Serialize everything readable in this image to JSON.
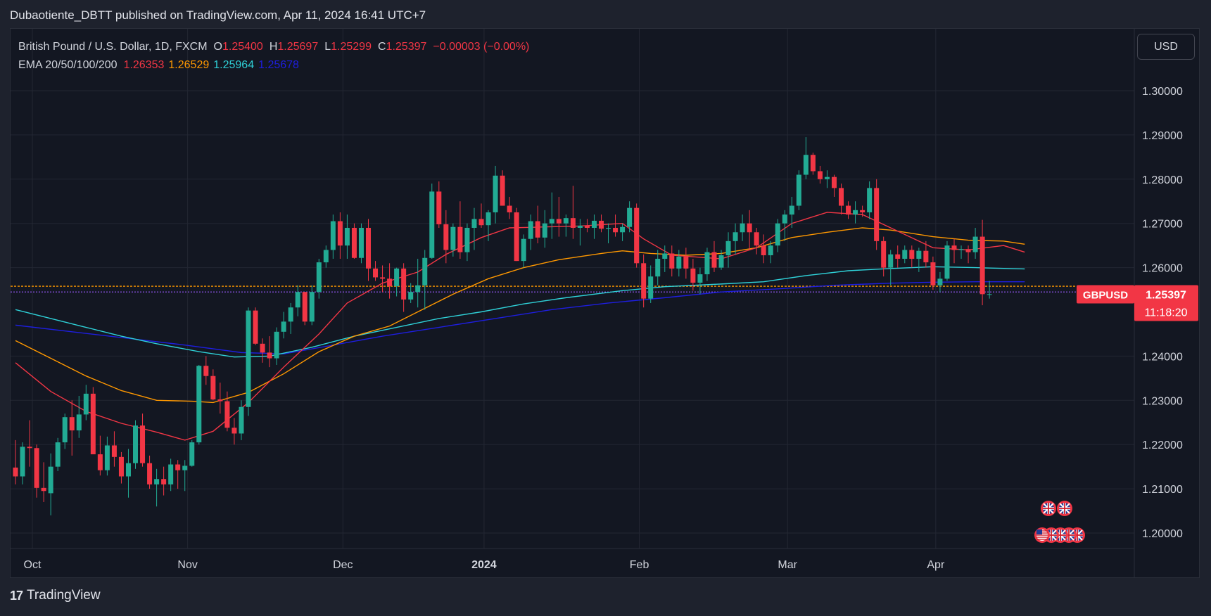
{
  "header": {
    "publish_line": "Dubaotiente_DBTT published on TradingView.com, Apr 11, 2024 16:41 UTC+7"
  },
  "legend": {
    "symbol_desc": "British Pound / U.S. Dollar, 1D, FXCM",
    "o_label": "O",
    "o_value": "1.25400",
    "h_label": "H",
    "h_value": "1.25697",
    "l_label": "L",
    "l_value": "1.25299",
    "c_label": "C",
    "c_value": "1.25397",
    "change": "−0.00003 (−0.00%)",
    "ema_label": "EMA 20/50/100/200",
    "ema20": "1.26353",
    "ema50": "1.26529",
    "ema100": "1.25964",
    "ema200": "1.25678"
  },
  "currency_button": "USD",
  "price_tag": {
    "symbol": "GBPUSD",
    "price": "1.25397",
    "countdown": "11:18:20"
  },
  "brand": {
    "name": "TradingView",
    "logo": "17"
  },
  "colors": {
    "up": "#22ab94",
    "down": "#f23645",
    "ema20": "#f23645",
    "ema50": "#ff9800",
    "ema100": "#2fd1d8",
    "ema200": "#1e1ee0",
    "background": "#131722",
    "hline_orange": "#ff9800",
    "hline_purple": "#9b59ff"
  },
  "chart_data": {
    "type": "candlestick",
    "yticks": [
      "1.30000",
      "1.29000",
      "1.28000",
      "1.27000",
      "1.26000",
      "1.24000",
      "1.23000",
      "1.22000",
      "1.21000",
      "1.20000"
    ],
    "ylim": [
      1.2,
      1.3
    ],
    "xticks": [
      "Oct",
      "Nov",
      "Dec",
      "2024",
      "Feb",
      "Mar",
      "Apr"
    ],
    "xtick_positions": [
      0,
      22,
      44,
      64,
      86,
      107,
      128
    ],
    "horizontal_lines": [
      1.2558,
      1.2545
    ],
    "candles": [
      [
        1.2148,
        1.221,
        1.211,
        1.2128
      ],
      [
        1.2128,
        1.2205,
        1.211,
        1.2195
      ],
      [
        1.2195,
        1.2255,
        1.215,
        1.2192
      ],
      [
        1.2192,
        1.22,
        1.208,
        1.2102
      ],
      [
        1.2102,
        1.216,
        1.207,
        1.2095
      ],
      [
        1.209,
        1.218,
        1.204,
        1.215
      ],
      [
        1.215,
        1.2215,
        1.214,
        1.2205
      ],
      [
        1.2205,
        1.227,
        1.219,
        1.2262
      ],
      [
        1.2262,
        1.23,
        1.2175,
        1.2232
      ],
      [
        1.2232,
        1.231,
        1.2215,
        1.2268
      ],
      [
        1.2268,
        1.2335,
        1.2255,
        1.2315
      ],
      [
        1.2315,
        1.233,
        1.218,
        1.2178
      ],
      [
        1.2178,
        1.222,
        1.213,
        1.2142
      ],
      [
        1.2142,
        1.2218,
        1.213,
        1.2198
      ],
      [
        1.2198,
        1.223,
        1.215,
        1.2172
      ],
      [
        1.2172,
        1.2183,
        1.2112,
        1.2128
      ],
      [
        1.2128,
        1.219,
        1.208,
        1.2158
      ],
      [
        1.2158,
        1.2255,
        1.2145,
        1.2243
      ],
      [
        1.2243,
        1.227,
        1.215,
        1.2158
      ],
      [
        1.2158,
        1.2175,
        1.21,
        1.211
      ],
      [
        1.211,
        1.2145,
        1.206,
        1.2122
      ],
      [
        1.2122,
        1.215,
        1.2085,
        1.211
      ],
      [
        1.211,
        1.2168,
        1.2095,
        1.2155
      ],
      [
        1.2155,
        1.2165,
        1.21,
        1.2142
      ],
      [
        1.2142,
        1.2165,
        1.2095,
        1.2152
      ],
      [
        1.2152,
        1.221,
        1.215,
        1.2205
      ],
      [
        1.2205,
        1.238,
        1.22,
        1.2378
      ],
      [
        1.2378,
        1.24,
        1.2335,
        1.2355
      ],
      [
        1.2355,
        1.237,
        1.23,
        1.2302
      ],
      [
        1.2302,
        1.234,
        1.227,
        1.2298
      ],
      [
        1.2298,
        1.232,
        1.223,
        1.2238
      ],
      [
        1.2238,
        1.226,
        1.22,
        1.2225
      ],
      [
        1.2225,
        1.23,
        1.221,
        1.2285
      ],
      [
        1.2285,
        1.251,
        1.2265,
        1.2503
      ],
      [
        1.2503,
        1.251,
        1.2425,
        1.2428
      ],
      [
        1.2428,
        1.244,
        1.2385,
        1.2408
      ],
      [
        1.2408,
        1.2445,
        1.2375,
        1.2395
      ],
      [
        1.2395,
        1.2465,
        1.238,
        1.2455
      ],
      [
        1.2455,
        1.25,
        1.244,
        1.2478
      ],
      [
        1.2478,
        1.252,
        1.245,
        1.251
      ],
      [
        1.251,
        1.256,
        1.249,
        1.2545
      ],
      [
        1.2545,
        1.2545,
        1.247,
        1.2478
      ],
      [
        1.2478,
        1.256,
        1.247,
        1.2545
      ],
      [
        1.2545,
        1.262,
        1.253,
        1.2612
      ],
      [
        1.2612,
        1.265,
        1.26,
        1.264
      ],
      [
        1.264,
        1.272,
        1.262,
        1.2705
      ],
      [
        1.2705,
        1.2725,
        1.262,
        1.265
      ],
      [
        1.265,
        1.272,
        1.262,
        1.269
      ],
      [
        1.269,
        1.27,
        1.262,
        1.2622
      ],
      [
        1.2622,
        1.27,
        1.261,
        1.269
      ],
      [
        1.269,
        1.271,
        1.257,
        1.2598
      ],
      [
        1.2598,
        1.2615,
        1.257,
        1.2578
      ],
      [
        1.2578,
        1.2605,
        1.2545,
        1.2575
      ],
      [
        1.2575,
        1.261,
        1.253,
        1.2558
      ],
      [
        1.2558,
        1.26,
        1.2535,
        1.2598
      ],
      [
        1.2598,
        1.261,
        1.25,
        1.2528
      ],
      [
        1.2528,
        1.2565,
        1.252,
        1.2545
      ],
      [
        1.2545,
        1.262,
        1.251,
        1.256
      ],
      [
        1.256,
        1.264,
        1.2505,
        1.2622
      ],
      [
        1.2622,
        1.279,
        1.262,
        1.2772
      ],
      [
        1.2772,
        1.2795,
        1.269,
        1.2698
      ],
      [
        1.2698,
        1.273,
        1.261,
        1.264
      ],
      [
        1.264,
        1.27,
        1.2625,
        1.2692
      ],
      [
        1.2692,
        1.275,
        1.262,
        1.2635
      ],
      [
        1.2635,
        1.27,
        1.2615,
        1.269
      ],
      [
        1.269,
        1.2735,
        1.264,
        1.271
      ],
      [
        1.271,
        1.2745,
        1.269,
        1.2696
      ],
      [
        1.2696,
        1.273,
        1.266,
        1.2725
      ],
      [
        1.2725,
        1.283,
        1.27,
        1.2808
      ],
      [
        1.2808,
        1.282,
        1.274,
        1.274
      ],
      [
        1.274,
        1.276,
        1.271,
        1.2725
      ],
      [
        1.2725,
        1.2735,
        1.2615,
        1.2615
      ],
      [
        1.2615,
        1.2675,
        1.26,
        1.2665
      ],
      [
        1.2665,
        1.272,
        1.264,
        1.2705
      ],
      [
        1.2705,
        1.274,
        1.2655,
        1.2668
      ],
      [
        1.2668,
        1.273,
        1.2645,
        1.27
      ],
      [
        1.27,
        1.277,
        1.2665,
        1.271
      ],
      [
        1.271,
        1.276,
        1.267,
        1.27
      ],
      [
        1.27,
        1.272,
        1.267,
        1.2712
      ],
      [
        1.2712,
        1.2785,
        1.2665,
        1.269
      ],
      [
        1.269,
        1.271,
        1.265,
        1.2695
      ],
      [
        1.2695,
        1.271,
        1.268,
        1.269
      ],
      [
        1.269,
        1.272,
        1.2665,
        1.2706
      ],
      [
        1.2706,
        1.272,
        1.268,
        1.2688
      ],
      [
        1.2688,
        1.27,
        1.2655,
        1.269
      ],
      [
        1.269,
        1.272,
        1.267,
        1.268
      ],
      [
        1.268,
        1.27,
        1.266,
        1.2692
      ],
      [
        1.2692,
        1.275,
        1.268,
        1.2735
      ],
      [
        1.2735,
        1.2745,
        1.26,
        1.261
      ],
      [
        1.261,
        1.263,
        1.251,
        1.253
      ],
      [
        1.253,
        1.2605,
        1.252,
        1.258
      ],
      [
        1.258,
        1.264,
        1.256,
        1.262
      ],
      [
        1.262,
        1.265,
        1.259,
        1.2632
      ],
      [
        1.2632,
        1.265,
        1.258,
        1.2598
      ],
      [
        1.2598,
        1.264,
        1.258,
        1.2625
      ],
      [
        1.2625,
        1.2645,
        1.2575,
        1.2598
      ],
      [
        1.2598,
        1.262,
        1.2548,
        1.2566
      ],
      [
        1.2566,
        1.26,
        1.254,
        1.2585
      ],
      [
        1.2585,
        1.2645,
        1.257,
        1.2635
      ],
      [
        1.2635,
        1.266,
        1.259,
        1.26
      ],
      [
        1.26,
        1.264,
        1.2595,
        1.2628
      ],
      [
        1.2628,
        1.268,
        1.26,
        1.266
      ],
      [
        1.266,
        1.27,
        1.263,
        1.268
      ],
      [
        1.268,
        1.272,
        1.266,
        1.27
      ],
      [
        1.27,
        1.273,
        1.264,
        1.268
      ],
      [
        1.268,
        1.269,
        1.263,
        1.265
      ],
      [
        1.265,
        1.2675,
        1.261,
        1.2628
      ],
      [
        1.2628,
        1.266,
        1.261,
        1.265
      ],
      [
        1.265,
        1.271,
        1.2635,
        1.27
      ],
      [
        1.27,
        1.273,
        1.266,
        1.272
      ],
      [
        1.272,
        1.276,
        1.269,
        1.274
      ],
      [
        1.274,
        1.282,
        1.273,
        1.281
      ],
      [
        1.281,
        1.2895,
        1.28,
        1.2855
      ],
      [
        1.2855,
        1.286,
        1.281,
        1.2818
      ],
      [
        1.2818,
        1.283,
        1.279,
        1.28
      ],
      [
        1.28,
        1.282,
        1.278,
        1.2805
      ],
      [
        1.2805,
        1.281,
        1.276,
        1.278
      ],
      [
        1.278,
        1.279,
        1.272,
        1.274
      ],
      [
        1.274,
        1.275,
        1.271,
        1.272
      ],
      [
        1.272,
        1.275,
        1.27,
        1.273
      ],
      [
        1.273,
        1.274,
        1.2715,
        1.2725
      ],
      [
        1.2725,
        1.2795,
        1.271,
        1.278
      ],
      [
        1.278,
        1.28,
        1.264,
        1.266
      ],
      [
        1.266,
        1.267,
        1.258,
        1.26
      ],
      [
        1.26,
        1.264,
        1.256,
        1.263
      ],
      [
        1.263,
        1.265,
        1.26,
        1.262
      ],
      [
        1.262,
        1.265,
        1.261,
        1.264
      ],
      [
        1.264,
        1.265,
        1.26,
        1.262
      ],
      [
        1.262,
        1.2645,
        1.259,
        1.2638
      ],
      [
        1.2638,
        1.266,
        1.26,
        1.2612
      ],
      [
        1.2612,
        1.2625,
        1.255,
        1.256
      ],
      [
        1.256,
        1.259,
        1.2545,
        1.2575
      ],
      [
        1.2575,
        1.266,
        1.257,
        1.265
      ],
      [
        1.265,
        1.2665,
        1.261,
        1.264
      ],
      [
        1.264,
        1.265,
        1.262,
        1.2642
      ],
      [
        1.2642,
        1.265,
        1.261,
        1.2635
      ],
      [
        1.2635,
        1.269,
        1.262,
        1.267
      ],
      [
        1.267,
        1.2708,
        1.2515,
        1.254
      ],
      [
        1.254,
        1.257,
        1.253,
        1.254
      ]
    ],
    "ema": {
      "ema20": [
        [
          0,
          1.2385
        ],
        [
          5,
          1.232
        ],
        [
          10,
          1.2275
        ],
        [
          15,
          1.2248
        ],
        [
          20,
          1.2228
        ],
        [
          24,
          1.221
        ],
        [
          28,
          1.223
        ],
        [
          33,
          1.2295
        ],
        [
          38,
          1.2375
        ],
        [
          43,
          1.245
        ],
        [
          47,
          1.252
        ],
        [
          52,
          1.2565
        ],
        [
          57,
          1.259
        ],
        [
          61,
          1.263
        ],
        [
          66,
          1.2668
        ],
        [
          70,
          1.269
        ],
        [
          75,
          1.2692
        ],
        [
          80,
          1.2694
        ],
        [
          86,
          1.27
        ],
        [
          89,
          1.2665
        ],
        [
          93,
          1.2628
        ],
        [
          100,
          1.262
        ],
        [
          105,
          1.2645
        ],
        [
          110,
          1.27
        ],
        [
          115,
          1.2725
        ],
        [
          120,
          1.272
        ],
        [
          124,
          1.269
        ],
        [
          130,
          1.2645
        ],
        [
          135,
          1.264
        ],
        [
          140,
          1.265
        ],
        [
          143,
          1.2635
        ]
      ],
      "ema50": [
        [
          0,
          1.2435
        ],
        [
          5,
          1.2395
        ],
        [
          10,
          1.2355
        ],
        [
          15,
          1.2322
        ],
        [
          20,
          1.23
        ],
        [
          25,
          1.2298
        ],
        [
          28,
          1.2295
        ],
        [
          33,
          1.2318
        ],
        [
          38,
          1.236
        ],
        [
          43,
          1.241
        ],
        [
          48,
          1.2445
        ],
        [
          53,
          1.2468
        ],
        [
          57,
          1.25
        ],
        [
          62,
          1.254
        ],
        [
          67,
          1.2575
        ],
        [
          72,
          1.26
        ],
        [
          77,
          1.2618
        ],
        [
          83,
          1.2632
        ],
        [
          86,
          1.2638
        ],
        [
          90,
          1.2632
        ],
        [
          95,
          1.2628
        ],
        [
          100,
          1.2632
        ],
        [
          105,
          1.2645
        ],
        [
          110,
          1.2668
        ],
        [
          115,
          1.268
        ],
        [
          120,
          1.269
        ],
        [
          124,
          1.2685
        ],
        [
          130,
          1.267
        ],
        [
          135,
          1.2662
        ],
        [
          140,
          1.266
        ],
        [
          143,
          1.2653
        ]
      ],
      "ema100": [
        [
          0,
          1.2505
        ],
        [
          5,
          1.2485
        ],
        [
          10,
          1.2465
        ],
        [
          15,
          1.2445
        ],
        [
          20,
          1.2428
        ],
        [
          26,
          1.241
        ],
        [
          31,
          1.2398
        ],
        [
          36,
          1.24
        ],
        [
          42,
          1.242
        ],
        [
          48,
          1.2445
        ],
        [
          54,
          1.2465
        ],
        [
          60,
          1.2485
        ],
        [
          66,
          1.25
        ],
        [
          72,
          1.2518
        ],
        [
          78,
          1.2532
        ],
        [
          86,
          1.2548
        ],
        [
          92,
          1.2557
        ],
        [
          100,
          1.2563
        ],
        [
          106,
          1.2568
        ],
        [
          112,
          1.2582
        ],
        [
          118,
          1.2593
        ],
        [
          124,
          1.2598
        ],
        [
          130,
          1.2602
        ],
        [
          136,
          1.26
        ],
        [
          143,
          1.2597
        ]
      ],
      "ema200": [
        [
          0,
          1.247
        ],
        [
          8,
          1.2455
        ],
        [
          16,
          1.244
        ],
        [
          24,
          1.2425
        ],
        [
          32,
          1.2408
        ],
        [
          38,
          1.2405
        ],
        [
          44,
          1.2422
        ],
        [
          52,
          1.2445
        ],
        [
          60,
          1.2465
        ],
        [
          68,
          1.2485
        ],
        [
          76,
          1.2505
        ],
        [
          84,
          1.252
        ],
        [
          92,
          1.2532
        ],
        [
          100,
          1.2545
        ],
        [
          108,
          1.2552
        ],
        [
          116,
          1.256
        ],
        [
          124,
          1.2565
        ],
        [
          130,
          1.2567
        ],
        [
          136,
          1.2568
        ],
        [
          143,
          1.2568
        ]
      ]
    }
  }
}
